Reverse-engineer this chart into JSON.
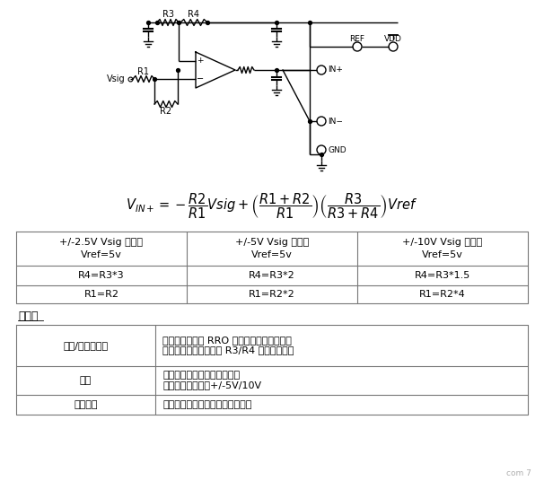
{
  "formula": "$V_{IN+} = -\\dfrac{R2}{R1}Vsig + \\left(\\dfrac{R1+R2}{R1}\\right)\\left(\\dfrac{R3}{R3+R4}\\right)Vref$",
  "table1_cols": [
    [
      "+/-2.5V Vsig 范围，\nVref=5v",
      "R4=R3*3",
      "R1=R2"
    ],
    [
      "+/-5V Vsig 范围，\nVref=5v",
      "R4=R3*2",
      "R1=R2*2"
    ],
    [
      "+/-10V Vsig 范围，\nVref=5v",
      "R4=R3*1.5",
      "R1=R2*4"
    ]
  ],
  "table2_title": "利与弊",
  "table2_rows": [
    [
      "裕量/单电源供电",
      "对单电源供电的 RRO 放大器效果良好，因为\n放大器输入共模电压由 R3/R4 分压器设置。"
    ],
    [
      "增益",
      "允许衰减增益和双极性输入。\n单电源供电时支持+/-5V/10V"
    ],
    [
      "输入阻抗",
      "高阻抗受放大器的输入漏电流限制"
    ]
  ],
  "bg_color": "#ffffff",
  "line_color": "#000000",
  "table_border_color": "#777777"
}
